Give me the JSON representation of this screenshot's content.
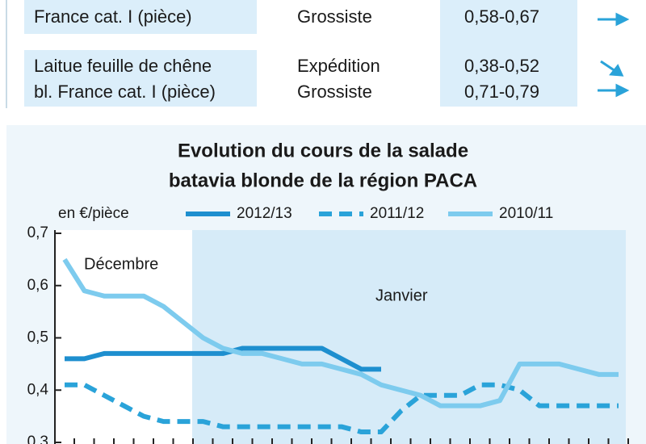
{
  "table": {
    "rows": [
      [
        "France cat. I (pièce)",
        "Grossiste",
        "0,58-0,67"
      ],
      [
        "Laitue feuille de chêne",
        "Expédition",
        "0,38-0,52"
      ],
      [
        "bl. France cat. I (pièce)",
        "Grossiste",
        "0,71-0,79"
      ]
    ]
  },
  "chart_data": {
    "type": "line",
    "title": [
      "Evolution du cours de la salade",
      "batavia blonde de la région PACA"
    ],
    "y_label": "en €/pièce",
    "annotations": [
      "Décembre",
      "Janvier"
    ],
    "categories": [
      null,
      null,
      null,
      null,
      null,
      null,
      null,
      null,
      null,
      null,
      null,
      null,
      null,
      null,
      null,
      null,
      null,
      null,
      null,
      null,
      null,
      null,
      null,
      null,
      null,
      null,
      null,
      null,
      null
    ],
    "ylim": [
      0.3,
      0.7
    ],
    "yticks": [
      {
        "value": 0.3,
        "label": "0,3"
      },
      {
        "value": 0.4,
        "label": "0,4"
      },
      {
        "value": 0.5,
        "label": "0,5"
      },
      {
        "value": 0.6,
        "label": "0,6"
      },
      {
        "value": 0.7,
        "label": "0,7"
      }
    ],
    "series": [
      {
        "name": "2012/13",
        "color": "#1e8fcf",
        "dash": false,
        "values": [
          0.46,
          0.46,
          0.47,
          0.47,
          0.47,
          0.47,
          0.47,
          0.47,
          0.47,
          0.48,
          0.48,
          0.48,
          0.48,
          0.48,
          0.46,
          0.44,
          0.44,
          null,
          null,
          null,
          null,
          null,
          null,
          null,
          null,
          null,
          null,
          null,
          null
        ]
      },
      {
        "name": "2011/12",
        "color": "#2aa3d9",
        "dash": true,
        "values": [
          0.41,
          0.41,
          0.39,
          0.37,
          0.35,
          0.34,
          0.34,
          0.34,
          0.33,
          0.33,
          0.33,
          0.33,
          0.33,
          0.33,
          0.33,
          0.32,
          0.32,
          0.36,
          0.39,
          0.39,
          0.39,
          0.41,
          0.41,
          0.4,
          0.37,
          0.37,
          0.37,
          0.37,
          0.37
        ]
      },
      {
        "name": "2010/11",
        "color": "#7dcbee",
        "dash": false,
        "values": [
          0.65,
          0.59,
          0.58,
          0.58,
          0.58,
          0.56,
          0.53,
          0.5,
          0.48,
          0.47,
          0.47,
          0.46,
          0.45,
          0.45,
          0.44,
          0.43,
          0.41,
          0.4,
          0.39,
          0.37,
          0.37,
          0.37,
          0.38,
          0.45,
          0.45,
          0.45,
          0.44,
          0.43,
          0.43
        ]
      }
    ]
  }
}
